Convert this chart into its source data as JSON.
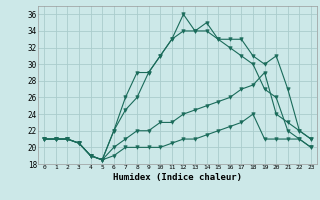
{
  "xlabel": "Humidex (Indice chaleur)",
  "bg_color": "#cce8e8",
  "grid_color": "#aacccc",
  "line_color": "#1a6b5a",
  "xlim": [
    -0.5,
    23.5
  ],
  "ylim": [
    18,
    37
  ],
  "xticks": [
    0,
    1,
    2,
    3,
    4,
    5,
    6,
    7,
    8,
    9,
    10,
    11,
    12,
    13,
    14,
    15,
    16,
    17,
    18,
    19,
    20,
    21,
    22,
    23
  ],
  "yticks": [
    18,
    20,
    22,
    24,
    26,
    28,
    30,
    32,
    34,
    36
  ],
  "series": {
    "line1": [
      21,
      21,
      21,
      20.5,
      19,
      18.5,
      22,
      26,
      29,
      29,
      31,
      33,
      36,
      34,
      35,
      33,
      33,
      33,
      31,
      30,
      31,
      27,
      22,
      21
    ],
    "line2": [
      21,
      21,
      21,
      20.5,
      19,
      18.5,
      22,
      24.5,
      26,
      29,
      31,
      33,
      34,
      34,
      34,
      33,
      32,
      31,
      30,
      27,
      26,
      22,
      21,
      20
    ],
    "line3": [
      21,
      21,
      21,
      20.5,
      19,
      18.5,
      20,
      21,
      22,
      22,
      23,
      23,
      24,
      24.5,
      25,
      25.5,
      26,
      27,
      27.5,
      29,
      24,
      23,
      22,
      21
    ],
    "line4": [
      21,
      21,
      21,
      20.5,
      19,
      18.5,
      19,
      20,
      20,
      20,
      20,
      20.5,
      21,
      21,
      21.5,
      22,
      22.5,
      23,
      24,
      21,
      21,
      21,
      21,
      20
    ]
  }
}
